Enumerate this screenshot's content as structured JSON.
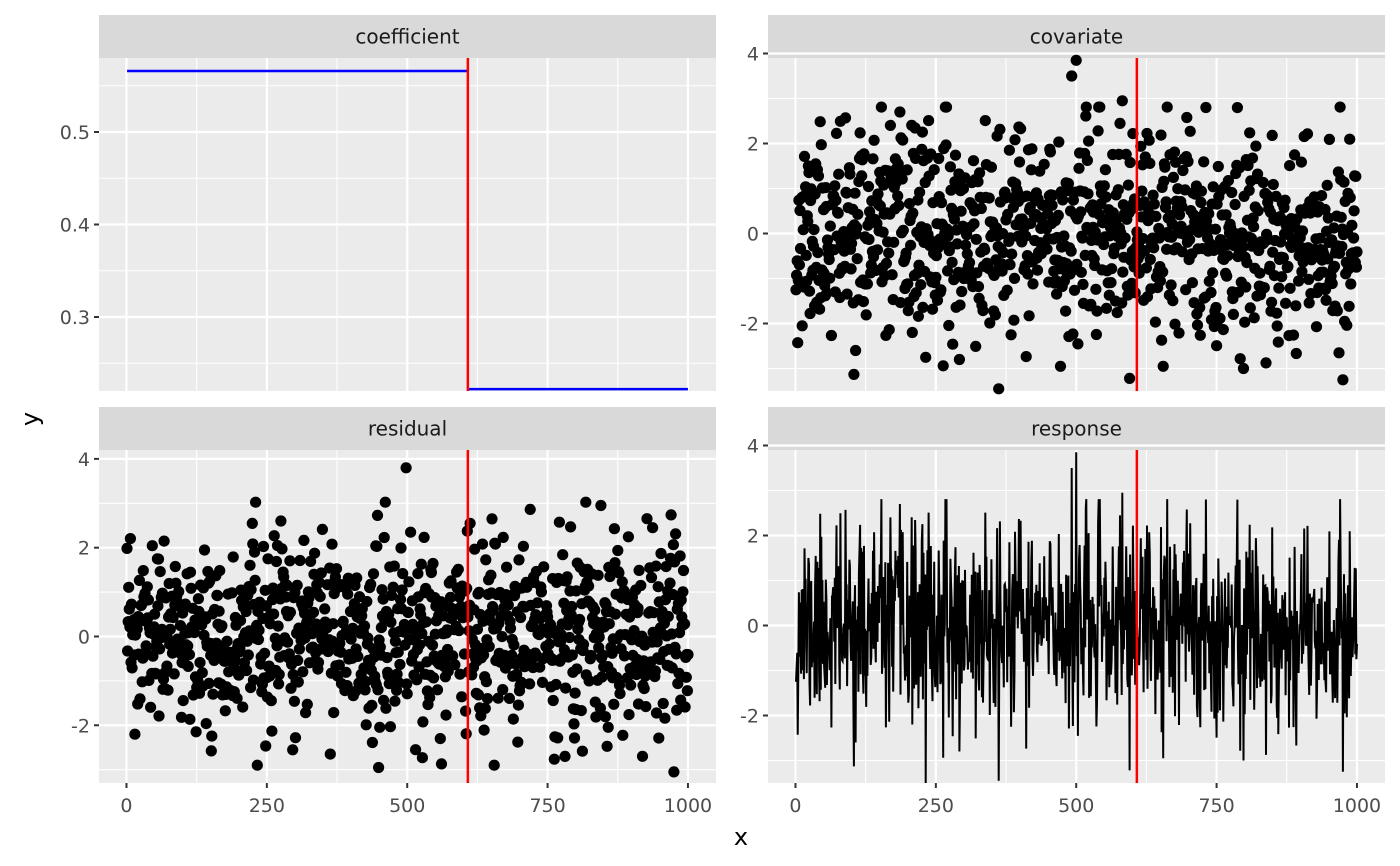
{
  "chart_data": {
    "type": "faceted",
    "xlabel": "x",
    "ylabel": "y",
    "x_range": [
      1,
      1000
    ],
    "x_ticks": [
      0,
      250,
      500,
      750,
      1000
    ],
    "changepoint": 608,
    "colors": {
      "changepoint": "#ff0000",
      "coefficient": "#0000ff",
      "points": "#000000",
      "line": "#000000",
      "panel_background": "#ebebeb",
      "strip_background": "#d9d9d9"
    },
    "panels": [
      {
        "title": "coefficient",
        "type": "step",
        "ylim": [
          0.22,
          0.58
        ],
        "y_ticks": [
          0.3,
          0.4,
          0.5
        ],
        "y_tick_labels": [
          "0.3",
          "0.4",
          "0.5"
        ],
        "segments": [
          {
            "x": [
              1,
              608
            ],
            "y": 0.566
          },
          {
            "x": [
              608,
              1000
            ],
            "y": 0.222
          }
        ]
      },
      {
        "title": "covariate",
        "type": "scatter",
        "ylim": [
          -3.5,
          3.9
        ],
        "y_ticks": [
          -2,
          0,
          2,
          4
        ],
        "y_tick_labels": [
          "-2",
          "0",
          "2",
          "4"
        ],
        "n": 1000,
        "sd": 1.1,
        "seed": 11,
        "highlights": [
          {
            "x": 232,
            "y": -3.5
          },
          {
            "x": 362,
            "y": -3.45
          },
          {
            "x": 975,
            "y": -3.25
          },
          {
            "x": 798,
            "y": -3.0
          },
          {
            "x": 655,
            "y": -2.95
          },
          {
            "x": 472,
            "y": -2.95
          },
          {
            "x": 232,
            "y": -2.75
          },
          {
            "x": 968,
            "y": -2.65
          },
          {
            "x": 500,
            "y": 3.85
          },
          {
            "x": 492,
            "y": 3.5
          },
          {
            "x": 582,
            "y": 2.95
          },
          {
            "x": 12,
            "y": -2.05
          }
        ]
      },
      {
        "title": "residual",
        "type": "scatter",
        "ylim": [
          -3.3,
          4.2
        ],
        "y_ticks": [
          -2,
          0,
          2,
          4
        ],
        "y_tick_labels": [
          "-2",
          "0",
          "2",
          "4"
        ],
        "n": 1000,
        "sd": 1.0,
        "seed": 23,
        "highlights": [
          {
            "x": 498,
            "y": 3.8
          },
          {
            "x": 845,
            "y": 2.95
          },
          {
            "x": 275,
            "y": 2.6
          },
          {
            "x": 612,
            "y": 2.55
          },
          {
            "x": 975,
            "y": -3.05
          },
          {
            "x": 449,
            "y": -2.95
          },
          {
            "x": 233,
            "y": -2.9
          },
          {
            "x": 655,
            "y": -2.9
          },
          {
            "x": 363,
            "y": -2.65
          },
          {
            "x": 781,
            "y": -2.7
          },
          {
            "x": 515,
            "y": -2.55
          },
          {
            "x": 15,
            "y": -2.2
          }
        ]
      },
      {
        "title": "response",
        "type": "line",
        "ylim": [
          -3.5,
          3.9
        ],
        "y_ticks": [
          -2,
          0,
          2,
          4
        ],
        "y_tick_labels": [
          "-2",
          "0",
          "2",
          "4"
        ],
        "n": 1000,
        "sd": 1.1,
        "seed": 11,
        "highlights": [
          {
            "x": 232,
            "y": -3.5
          },
          {
            "x": 362,
            "y": -3.45
          },
          {
            "x": 975,
            "y": -3.25
          },
          {
            "x": 798,
            "y": -3.0
          },
          {
            "x": 655,
            "y": -2.95
          },
          {
            "x": 500,
            "y": 3.85
          },
          {
            "x": 492,
            "y": 3.5
          },
          {
            "x": 582,
            "y": 2.95
          }
        ]
      }
    ]
  }
}
